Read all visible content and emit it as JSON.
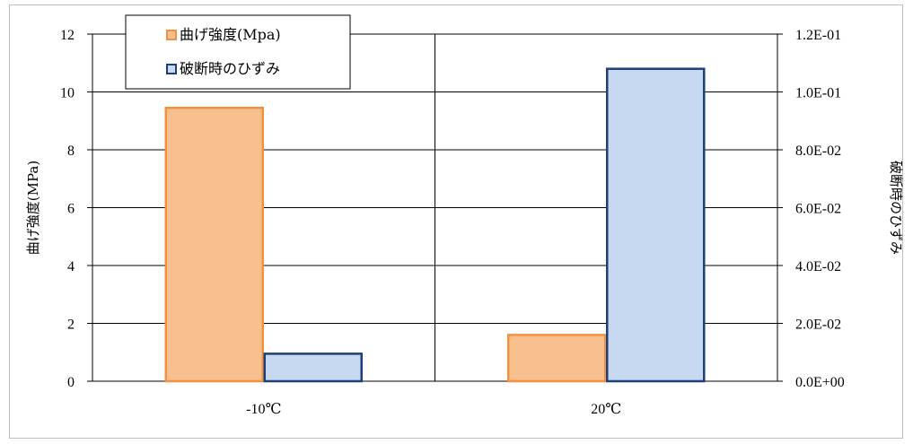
{
  "chart_data": {
    "type": "bar",
    "categories": [
      "-10℃",
      "20℃"
    ],
    "series": [
      {
        "name": "曲げ強度(Mpa)",
        "axis": "left",
        "values": [
          9.45,
          1.6
        ],
        "fill": "#f8c08f",
        "stroke": "#f0923f"
      },
      {
        "name": "破断時のひずみ",
        "axis": "right",
        "values": [
          0.0095,
          0.108
        ],
        "fill": "#c6d9f1",
        "stroke": "#1f3f7a"
      }
    ],
    "ylabel": "曲げ強度(MPa)",
    "y2label": "破断時のひずみ",
    "ylim": [
      0,
      12
    ],
    "y2lim": [
      0,
      0.12
    ],
    "yticks": [
      "0",
      "2",
      "4",
      "6",
      "8",
      "10",
      "12"
    ],
    "y2ticks": [
      "0.0E+00",
      "2.0E-02",
      "4.0E-02",
      "6.0E-02",
      "8.0E-02",
      "1.0E-01",
      "1.2E-01"
    ],
    "grid": true,
    "legend": "top-left"
  }
}
